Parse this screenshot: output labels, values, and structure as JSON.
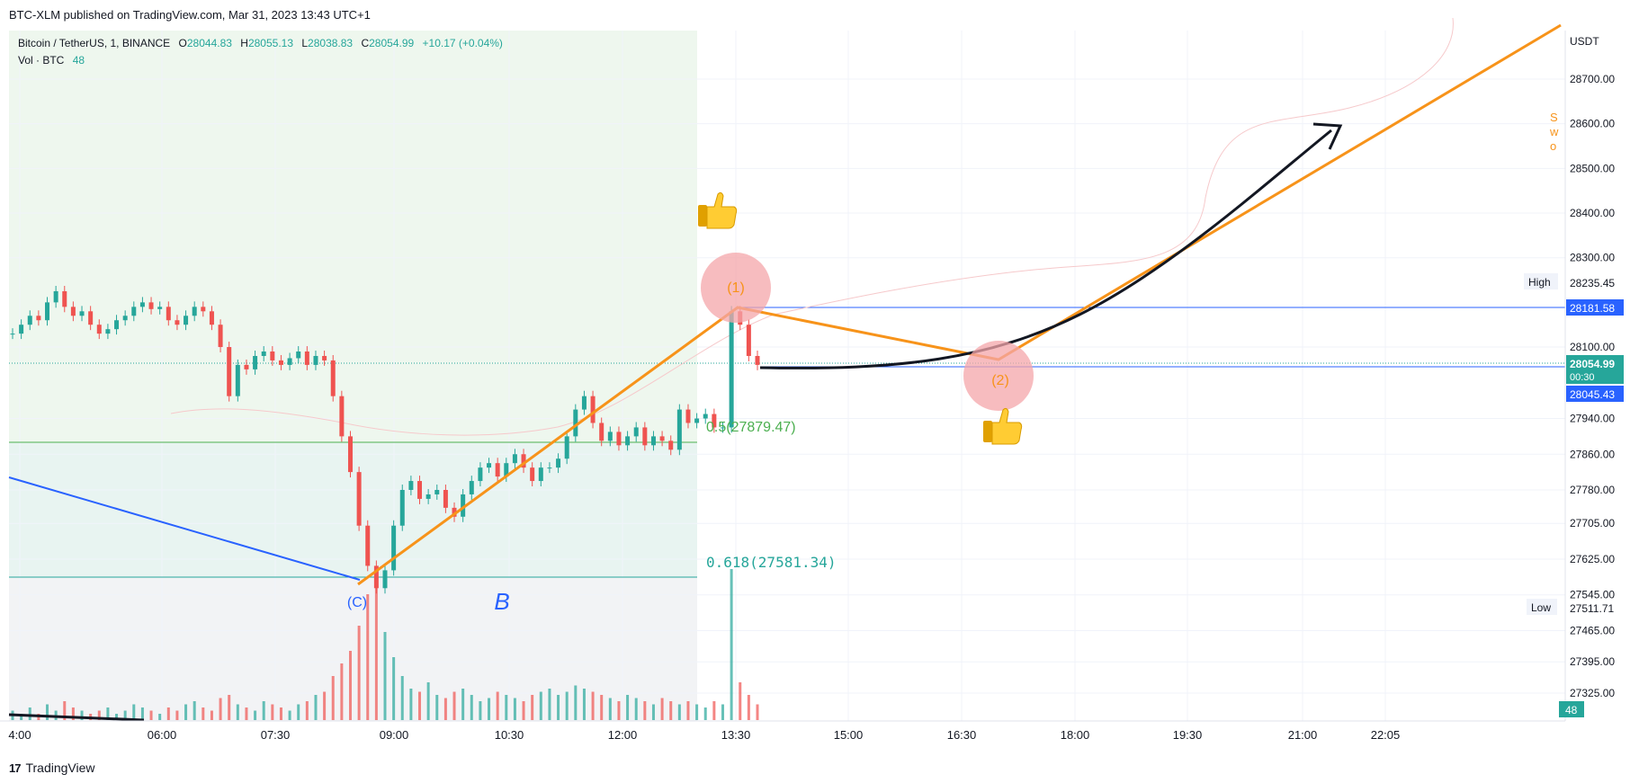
{
  "header": {
    "published": "BTC-XLM published on TradingView.com, Mar 31, 2023 13:43 UTC+1"
  },
  "legend": {
    "symbol": "Bitcoin / TetherUS, 1, BINANCE",
    "open_label": "O",
    "open": "28044.83",
    "high_label": "H",
    "high": "28055.13",
    "low_label": "L",
    "low": "28038.83",
    "close_label": "C",
    "close": "28054.99",
    "change": "+10.17 (+0.04%)",
    "volume_label": "Vol · BTC",
    "volume": "48"
  },
  "footer": {
    "brand": "TradingView"
  },
  "colors": {
    "up": "#26a69a",
    "down": "#ef5350",
    "fib": "#26a69a",
    "fib_05": "#4caf50",
    "orange": "#f7931a",
    "blue": "#2962ff",
    "price": "#2962ff"
  },
  "chart_data": {
    "type": "candlestick",
    "currency": "USDT",
    "x_ticks": [
      "4:00",
      "06:00",
      "07:30",
      "09:00",
      "10:30",
      "12:00",
      "13:30",
      "15:00",
      "16:30",
      "18:00",
      "19:30",
      "21:00",
      "22:05"
    ],
    "y_ticks": [
      "28700.00",
      "28600.00",
      "28500.00",
      "28400.00",
      "28300.00",
      "28100.00",
      "27940.00",
      "27860.00",
      "27780.00",
      "27705.00",
      "27625.00",
      "27545.00",
      "27465.00",
      "27395.00",
      "27325.00"
    ],
    "price_labels": {
      "high_label": "High",
      "high": "28235.45",
      "low_label": "Low",
      "low": "27511.71",
      "resistance": "28181.58",
      "last": "28054.99",
      "countdown": "00:30",
      "support": "28045.43",
      "volume": "48"
    },
    "fib_levels": [
      {
        "ratio": "0.5",
        "price": 27879.47,
        "label": "0.5(27879.47)"
      },
      {
        "ratio": "0.618",
        "price": 27581.34,
        "label": "0.618(27581.34)"
      }
    ],
    "annotations": {
      "wave_c": "(C)",
      "wave_b": "B",
      "wave_1": "(1)",
      "wave_2": "(2)"
    },
    "close_series": [
      28130,
      28150,
      28170,
      28160,
      28200,
      28225,
      28190,
      28170,
      28180,
      28150,
      28130,
      28140,
      28160,
      28170,
      28190,
      28200,
      28185,
      28190,
      28160,
      28150,
      28170,
      28190,
      28180,
      28150,
      28100,
      27990,
      28060,
      28050,
      28080,
      28090,
      28070,
      28060,
      28075,
      28090,
      28060,
      28080,
      28070,
      27990,
      27900,
      27820,
      27700,
      27610,
      27560,
      27600,
      27700,
      27780,
      27800,
      27760,
      27770,
      27780,
      27740,
      27720,
      27770,
      27800,
      27830,
      27840,
      27810,
      27840,
      27860,
      27830,
      27800,
      27830,
      27830,
      27850,
      27900,
      27960,
      27990,
      27930,
      27890,
      27910,
      27880,
      27900,
      27920,
      27880,
      27900,
      27890,
      27870,
      27960,
      27930,
      27940,
      27950,
      27920,
      27920,
      28180,
      28150,
      28080,
      28060
    ],
    "volume_series": [
      3,
      2,
      4,
      2,
      5,
      3,
      6,
      4,
      3,
      2,
      3,
      4,
      2,
      3,
      5,
      4,
      3,
      2,
      4,
      3,
      5,
      6,
      4,
      3,
      7,
      8,
      5,
      4,
      3,
      6,
      5,
      4,
      3,
      5,
      6,
      8,
      9,
      14,
      18,
      22,
      30,
      40,
      45,
      28,
      20,
      14,
      10,
      9,
      12,
      8,
      7,
      9,
      10,
      8,
      6,
      7,
      9,
      8,
      7,
      6,
      8,
      9,
      10,
      8,
      9,
      11,
      10,
      9,
      8,
      7,
      6,
      8,
      7,
      6,
      5,
      7,
      6,
      5,
      6,
      5,
      4,
      6,
      5,
      48,
      12,
      8,
      5
    ]
  }
}
